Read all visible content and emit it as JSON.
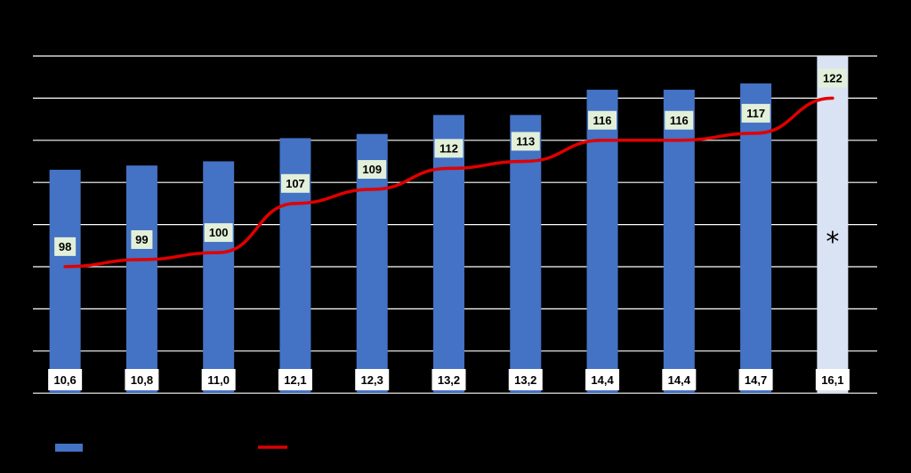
{
  "chart_data": {
    "type": "bar",
    "title": "",
    "xlabel": "",
    "ylabel": "",
    "categories": [
      "",
      "",
      "",
      "",
      "",
      "",
      "",
      "",
      "",
      "",
      ""
    ],
    "ylim": [
      0,
      16
    ],
    "grid": true,
    "series": [
      {
        "type": "bar",
        "values": [
          10.6,
          10.8,
          11.0,
          12.1,
          12.3,
          13.2,
          13.2,
          14.4,
          14.4,
          14.7,
          16.1
        ],
        "value_labels": [
          "10,6",
          "10,8",
          "11,0",
          "12,1",
          "12,3",
          "13,2",
          "13,2",
          "14,4",
          "14,4",
          "14,7",
          "16,1"
        ],
        "color": "#4472C4",
        "highlight_last": {
          "color": "#DAE3F3",
          "annotation": "*"
        }
      },
      {
        "type": "line",
        "values": [
          98,
          99,
          100,
          107,
          109,
          112,
          113,
          116,
          116,
          117,
          122
        ],
        "value_labels": [
          "98",
          "99",
          "100",
          "107",
          "109",
          "112",
          "113",
          "116",
          "116",
          "117",
          "122"
        ],
        "color": "#E00000",
        "ylim": [
          80,
          128
        ]
      }
    ],
    "legend": {
      "position": "bottom-left",
      "entries": [
        {
          "kind": "bar",
          "name": "",
          "color": "#4472C4"
        },
        {
          "kind": "line",
          "name": "",
          "color": "#E00000"
        }
      ]
    },
    "label_box_color": "#E2F0D9",
    "gridline_color": "#FFFFFF"
  }
}
